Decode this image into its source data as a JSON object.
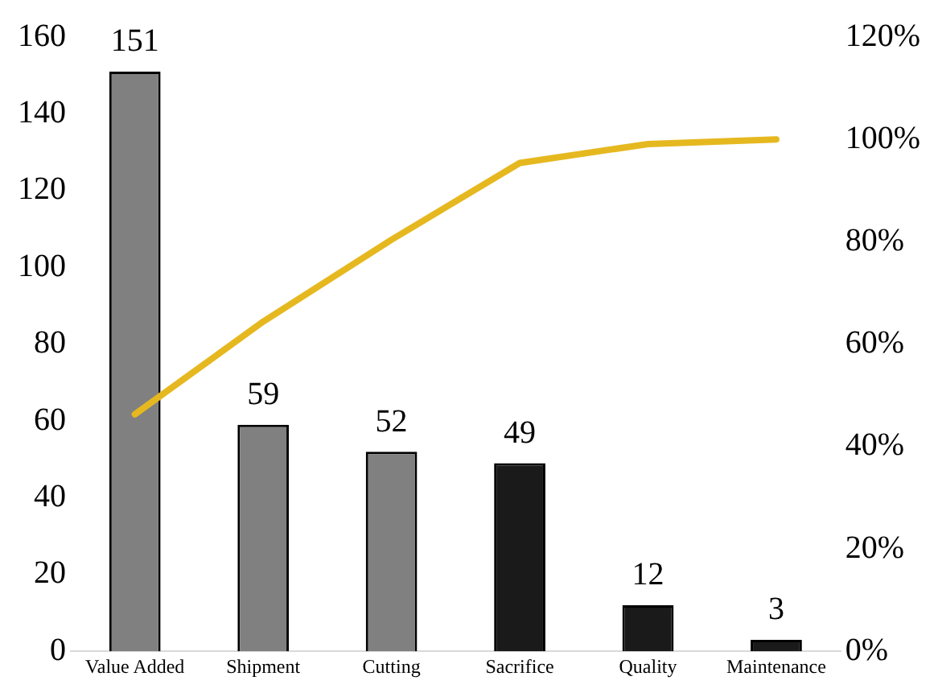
{
  "chart_data": {
    "type": "bar",
    "categories": [
      "Value Added",
      "Shipment",
      "Cutting",
      "Sacrifice",
      "Quality",
      "Maintenance"
    ],
    "series": [
      {
        "colors": [
          "#808080",
          "#808080",
          "#808080",
          "#1a1a1a",
          "#1a1a1a",
          "#1a1a1a"
        ],
        "values": [
          151,
          59,
          52,
          49,
          12,
          3
        ],
        "value_labels": [
          "151",
          "59",
          "52",
          "49",
          "12",
          "3"
        ]
      },
      {
        "type": "line",
        "axis": "y2",
        "color": "#e6b820",
        "values": [
          46.3,
          64.4,
          80.4,
          95.4,
          99.1,
          100
        ]
      }
    ],
    "ylim": [
      0,
      160
    ],
    "yticks": [
      0,
      20,
      40,
      60,
      80,
      100,
      120,
      140,
      160
    ],
    "y2lim": [
      0,
      120
    ],
    "y2ticks": [
      {
        "value": 0,
        "label": "0%"
      },
      {
        "value": 20,
        "label": "20%"
      },
      {
        "value": 40,
        "label": "40%"
      },
      {
        "value": 60,
        "label": "60%"
      },
      {
        "value": 80,
        "label": "80%"
      },
      {
        "value": 100,
        "label": "100%"
      },
      {
        "value": 120,
        "label": "120%"
      }
    ],
    "grid": false,
    "legend": false,
    "marker": "none"
  }
}
